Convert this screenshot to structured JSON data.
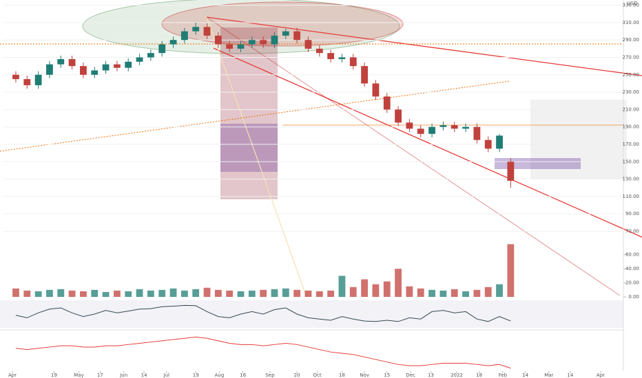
{
  "chart_data": {
    "type": "candlestick",
    "x": [
      0,
      1,
      2,
      3,
      4,
      5,
      6,
      7,
      8,
      9,
      10,
      11,
      12,
      13,
      14,
      15,
      16,
      17,
      18,
      19,
      20,
      21,
      22,
      23,
      24,
      25,
      26,
      27,
      28,
      29,
      30,
      31,
      32,
      33,
      34,
      35,
      36,
      37,
      38,
      39,
      40,
      41,
      42,
      43,
      44
    ],
    "open": [
      250,
      245,
      238,
      250,
      262,
      268,
      260,
      250,
      255,
      262,
      258,
      265,
      270,
      275,
      285,
      290,
      300,
      305,
      295,
      285,
      280,
      285,
      290,
      285,
      295,
      300,
      290,
      280,
      275,
      268,
      270,
      260,
      240,
      225,
      210,
      195,
      188,
      182,
      190,
      192,
      188,
      190,
      175,
      165,
      150
    ],
    "high": [
      254,
      249,
      254,
      266,
      272,
      272,
      264,
      259,
      266,
      266,
      269,
      274,
      279,
      289,
      294,
      304,
      310,
      309,
      299,
      289,
      289,
      294,
      294,
      299,
      303,
      304,
      294,
      284,
      279,
      274,
      274,
      264,
      244,
      229,
      214,
      199,
      192,
      194,
      196,
      196,
      194,
      194,
      179,
      182,
      154
    ],
    "low": [
      241,
      234,
      234,
      246,
      258,
      256,
      246,
      246,
      251,
      254,
      254,
      261,
      266,
      271,
      281,
      286,
      296,
      291,
      281,
      276,
      276,
      281,
      281,
      281,
      291,
      286,
      276,
      271,
      264,
      264,
      256,
      236,
      221,
      206,
      191,
      184,
      178,
      178,
      186,
      184,
      184,
      171,
      161,
      161,
      120
    ],
    "close": [
      245,
      238,
      250,
      262,
      268,
      260,
      250,
      255,
      262,
      258,
      265,
      270,
      275,
      285,
      290,
      300,
      305,
      295,
      285,
      280,
      285,
      290,
      285,
      295,
      300,
      290,
      280,
      275,
      268,
      270,
      260,
      240,
      225,
      210,
      195,
      188,
      182,
      190,
      192,
      188,
      190,
      175,
      165,
      180,
      128
    ],
    "volume": [
      12,
      9,
      8,
      10,
      11,
      9,
      8,
      10,
      7,
      9,
      8,
      11,
      9,
      10,
      12,
      9,
      11,
      13,
      10,
      9,
      8,
      9,
      10,
      11,
      12,
      10,
      9,
      8,
      9,
      30,
      14,
      25,
      18,
      22,
      40,
      15,
      12,
      10,
      9,
      11,
      8,
      10,
      14,
      18,
      75
    ],
    "rsi": [
      45,
      35,
      55,
      70,
      75,
      55,
      40,
      50,
      65,
      55,
      62,
      70,
      72,
      80,
      82,
      85,
      84,
      60,
      40,
      35,
      50,
      60,
      50,
      68,
      75,
      50,
      35,
      30,
      25,
      40,
      30,
      22,
      20,
      25,
      20,
      35,
      30,
      60,
      65,
      55,
      60,
      30,
      20,
      40,
      22
    ],
    "macd": [
      2,
      1,
      2,
      3,
      4,
      4,
      3,
      3,
      4,
      4,
      5,
      6,
      7,
      8,
      9,
      10,
      11,
      10,
      8,
      6,
      5,
      5,
      4,
      5,
      6,
      5,
      3,
      1,
      -1,
      -2,
      -3,
      -5,
      -7,
      -9,
      -11,
      -12,
      -12,
      -11,
      -10,
      -10,
      -10,
      -11,
      -12,
      -11,
      -14
    ],
    "up_color": "#1f7d74",
    "down_color": "#c0413d",
    "xlim": [
      -1.1,
      53.9
    ],
    "ylim": [
      62.5,
      336
    ],
    "yticks": [
      {
        "value": 70,
        "label": "70.00"
      },
      {
        "value": 90,
        "label": "90.00"
      },
      {
        "value": 110,
        "label": "110.00"
      },
      {
        "value": 130,
        "label": "130.00"
      },
      {
        "value": 150,
        "label": "150.00"
      },
      {
        "value": 170,
        "label": "170.00"
      },
      {
        "value": 190,
        "label": "190.00"
      },
      {
        "value": 210,
        "label": "210.00"
      },
      {
        "value": 230,
        "label": "230.00"
      },
      {
        "value": 250,
        "label": "250.00"
      },
      {
        "value": 270,
        "label": "270.00"
      },
      {
        "value": 290,
        "label": "290.00"
      },
      {
        "value": 310,
        "label": "310.00"
      },
      {
        "value": 330,
        "label": "330.00"
      }
    ],
    "volume_lim": [
      0,
      90
    ],
    "volume_ticks": [
      {
        "value": 0,
        "label": "0.00"
      },
      {
        "value": 20,
        "label": "20.00"
      },
      {
        "value": 40,
        "label": "40.00"
      },
      {
        "value": 60,
        "label": "60.00"
      }
    ],
    "rsi_lim": [
      0,
      100
    ],
    "macd_lim": [
      -18,
      14
    ],
    "xticks": [
      {
        "value": -0.3,
        "label": "Apr"
      },
      {
        "value": 3.4,
        "label": "19"
      },
      {
        "value": 5.6,
        "label": "May"
      },
      {
        "value": 7.5,
        "label": "17"
      },
      {
        "value": 9.6,
        "label": "Jun"
      },
      {
        "value": 11.4,
        "label": "14"
      },
      {
        "value": 13.4,
        "label": "Jul"
      },
      {
        "value": 16.0,
        "label": "19"
      },
      {
        "value": 18.1,
        "label": "Aug"
      },
      {
        "value": 20.2,
        "label": "16"
      },
      {
        "value": 22.6,
        "label": "Sep"
      },
      {
        "value": 25.0,
        "label": "20"
      },
      {
        "value": 26.8,
        "label": "Oct"
      },
      {
        "value": 29.0,
        "label": "18"
      },
      {
        "value": 31.0,
        "label": "Nov"
      },
      {
        "value": 33.0,
        "label": "15"
      },
      {
        "value": 35.1,
        "label": "Dec"
      },
      {
        "value": 36.9,
        "label": "13"
      },
      {
        "value": 39.2,
        "label": "2022"
      },
      {
        "value": 41.2,
        "label": "18"
      },
      {
        "value": 43.3,
        "label": "Feb"
      },
      {
        "value": 45.3,
        "label": "14"
      },
      {
        "value": 47.4,
        "label": "Mar"
      },
      {
        "value": 49.3,
        "label": "14"
      },
      {
        "value": 52.0,
        "label": "Apr"
      }
    ],
    "currency": "USD"
  }
}
